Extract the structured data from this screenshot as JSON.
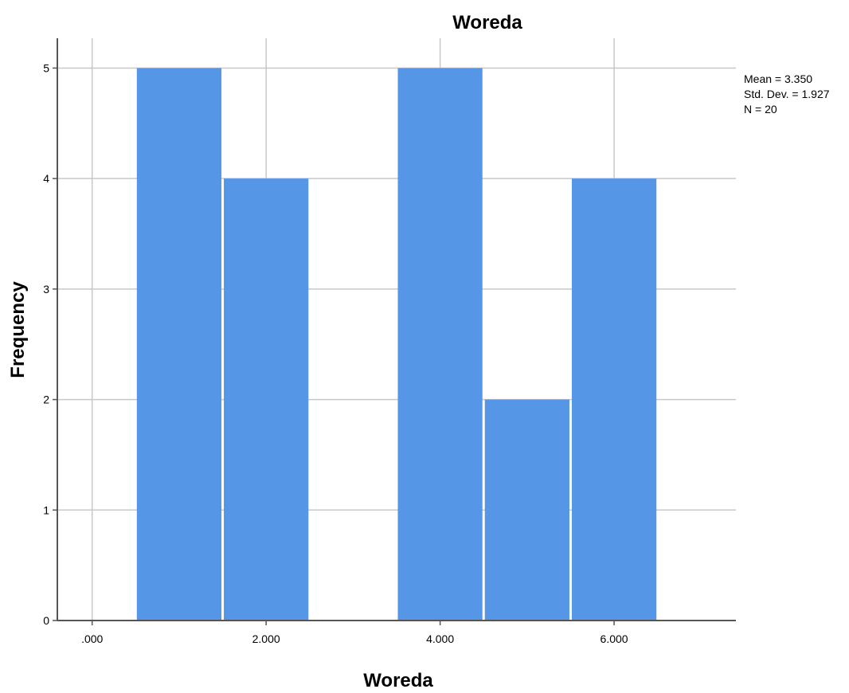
{
  "chart_data": {
    "type": "bar",
    "subtype": "histogram",
    "title": "Woreda",
    "xlabel": "Woreda",
    "ylabel": "Frequency",
    "bins": [
      {
        "start": 0.5,
        "end": 1.5,
        "value": 5
      },
      {
        "start": 1.5,
        "end": 2.5,
        "value": 4
      },
      {
        "start": 2.5,
        "end": 3.5,
        "value": 0
      },
      {
        "start": 3.5,
        "end": 4.5,
        "value": 5
      },
      {
        "start": 4.5,
        "end": 5.5,
        "value": 2
      },
      {
        "start": 5.5,
        "end": 6.5,
        "value": 4
      }
    ],
    "xlim": [
      -0.4,
      7.4
    ],
    "ylim": [
      0,
      5.27
    ],
    "x_ticks": [
      0,
      2,
      4,
      6
    ],
    "x_tick_labels": [
      ".000",
      "2.000",
      "4.000",
      "6.000"
    ],
    "y_ticks": [
      0,
      1,
      2,
      3,
      4,
      5
    ],
    "y_tick_labels": [
      "0",
      "1",
      "2",
      "3",
      "4",
      "5"
    ],
    "grid": true,
    "bar_color": "#5596E6",
    "stats": [
      "Mean = 3.350",
      "Std. Dev. = 1.927",
      "N = 20"
    ]
  }
}
